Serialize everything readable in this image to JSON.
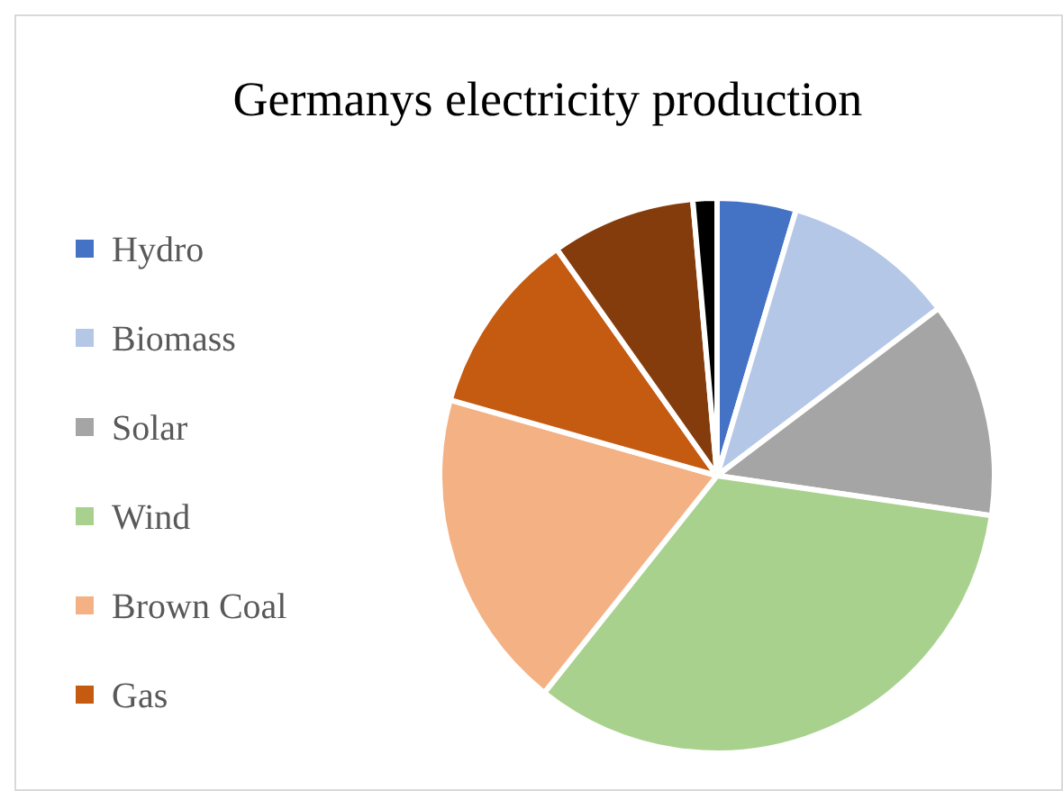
{
  "chart_data": {
    "type": "pie",
    "title": "Germanys electricity production",
    "categories": [
      "Hydro",
      "Biomass",
      "Solar",
      "Wind",
      "Brown Coal",
      "Gas",
      null,
      null
    ],
    "values": [
      4.6,
      10.1,
      12.6,
      33.4,
      18.7,
      10.8,
      8.4,
      1.4
    ],
    "colors": [
      "#4472c4",
      "#b4c7e7",
      "#a5a5a5",
      "#a9d18e",
      "#f4b183",
      "#c55a11",
      "#843c0c",
      "#000000"
    ],
    "legend": "left"
  }
}
